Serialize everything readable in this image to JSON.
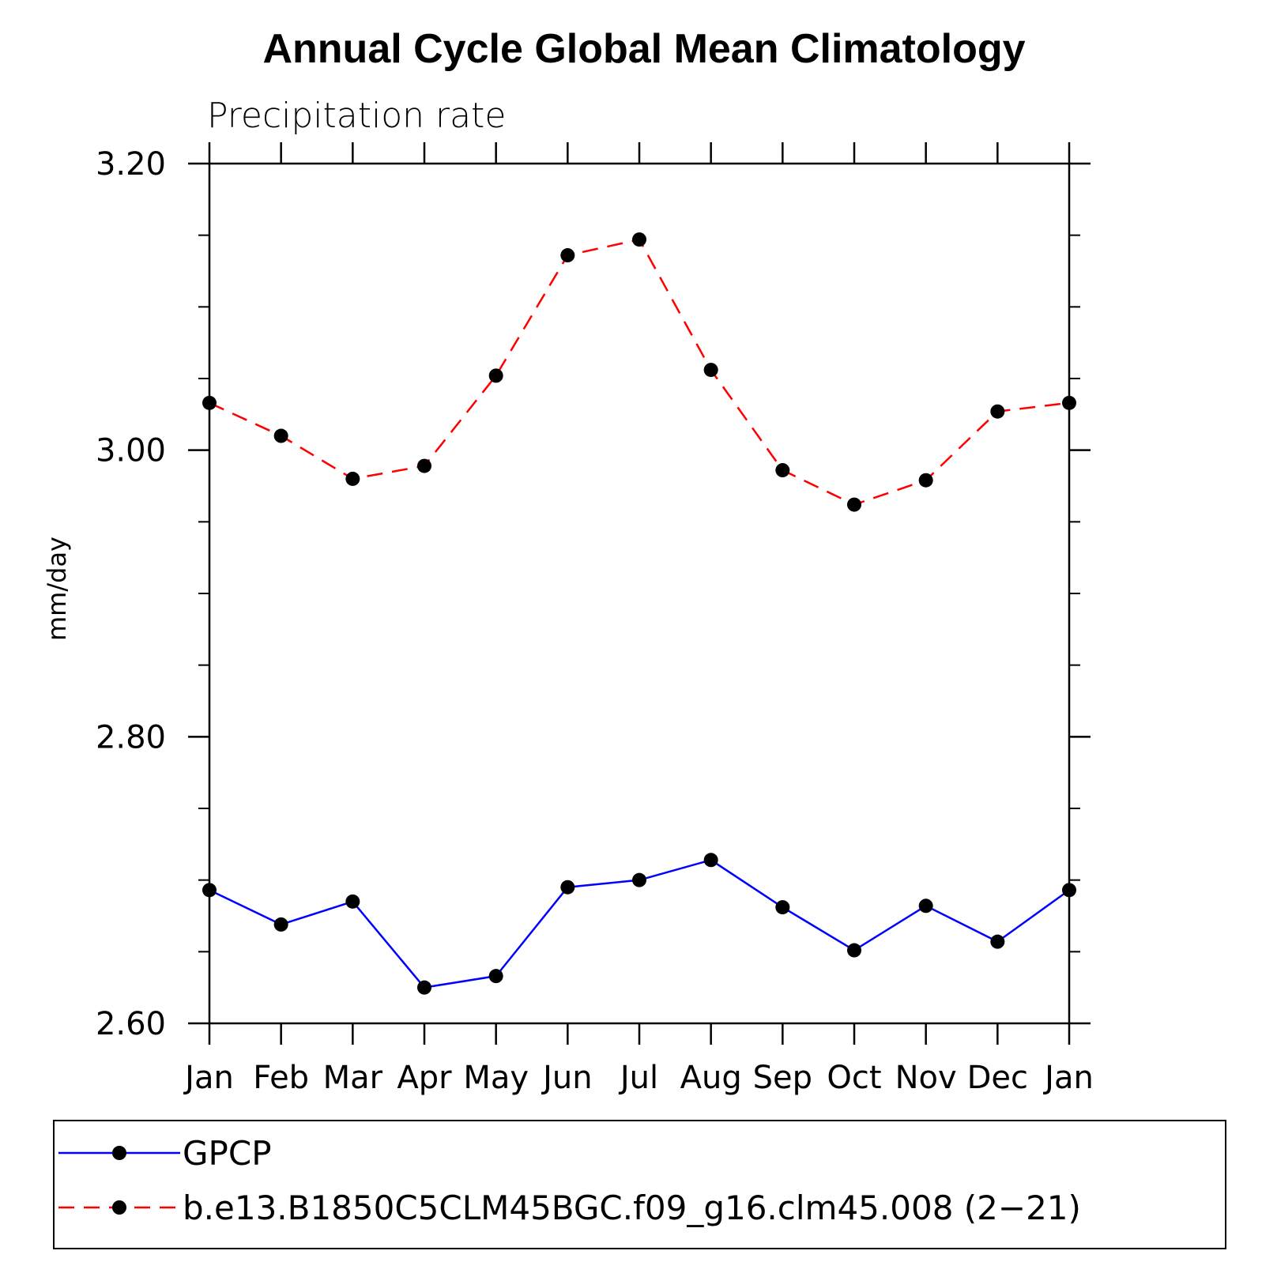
{
  "chart_data": {
    "type": "line",
    "title": "Annual Cycle Global Mean Climatology",
    "subtitle": "Precipitation rate",
    "xlabel": "",
    "ylabel": "mm/day",
    "categories": [
      "Jan",
      "Feb",
      "Mar",
      "Apr",
      "May",
      "Jun",
      "Jul",
      "Aug",
      "Sep",
      "Oct",
      "Nov",
      "Dec",
      "Jan"
    ],
    "ylim": [
      2.6,
      3.2
    ],
    "yticks": [
      2.6,
      2.8,
      3.0,
      3.2
    ],
    "ytick_labels": [
      "2.60",
      "2.80",
      "3.00",
      "3.20"
    ],
    "yminor_ticks": [
      2.65,
      2.7,
      2.75,
      2.85,
      2.9,
      2.95,
      3.05,
      3.1,
      3.15
    ],
    "grid": false,
    "legend_position": "bottom",
    "series": [
      {
        "name": "GPCP",
        "color": "#0000ff",
        "dash": "solid",
        "marker_color": "#000000",
        "values": [
          2.693,
          2.669,
          2.685,
          2.625,
          2.633,
          2.695,
          2.7,
          2.714,
          2.681,
          2.651,
          2.682,
          2.657,
          2.693
        ]
      },
      {
        "name": "b.e13.B1850C5CLM45BGC.f09_g16.clm45.008 (2−21)",
        "color": "#ff0000",
        "dash": "dashed",
        "marker_color": "#000000",
        "values": [
          3.033,
          3.01,
          2.98,
          2.989,
          3.052,
          3.136,
          3.147,
          3.056,
          2.986,
          2.962,
          2.979,
          3.027,
          3.033
        ]
      }
    ]
  }
}
